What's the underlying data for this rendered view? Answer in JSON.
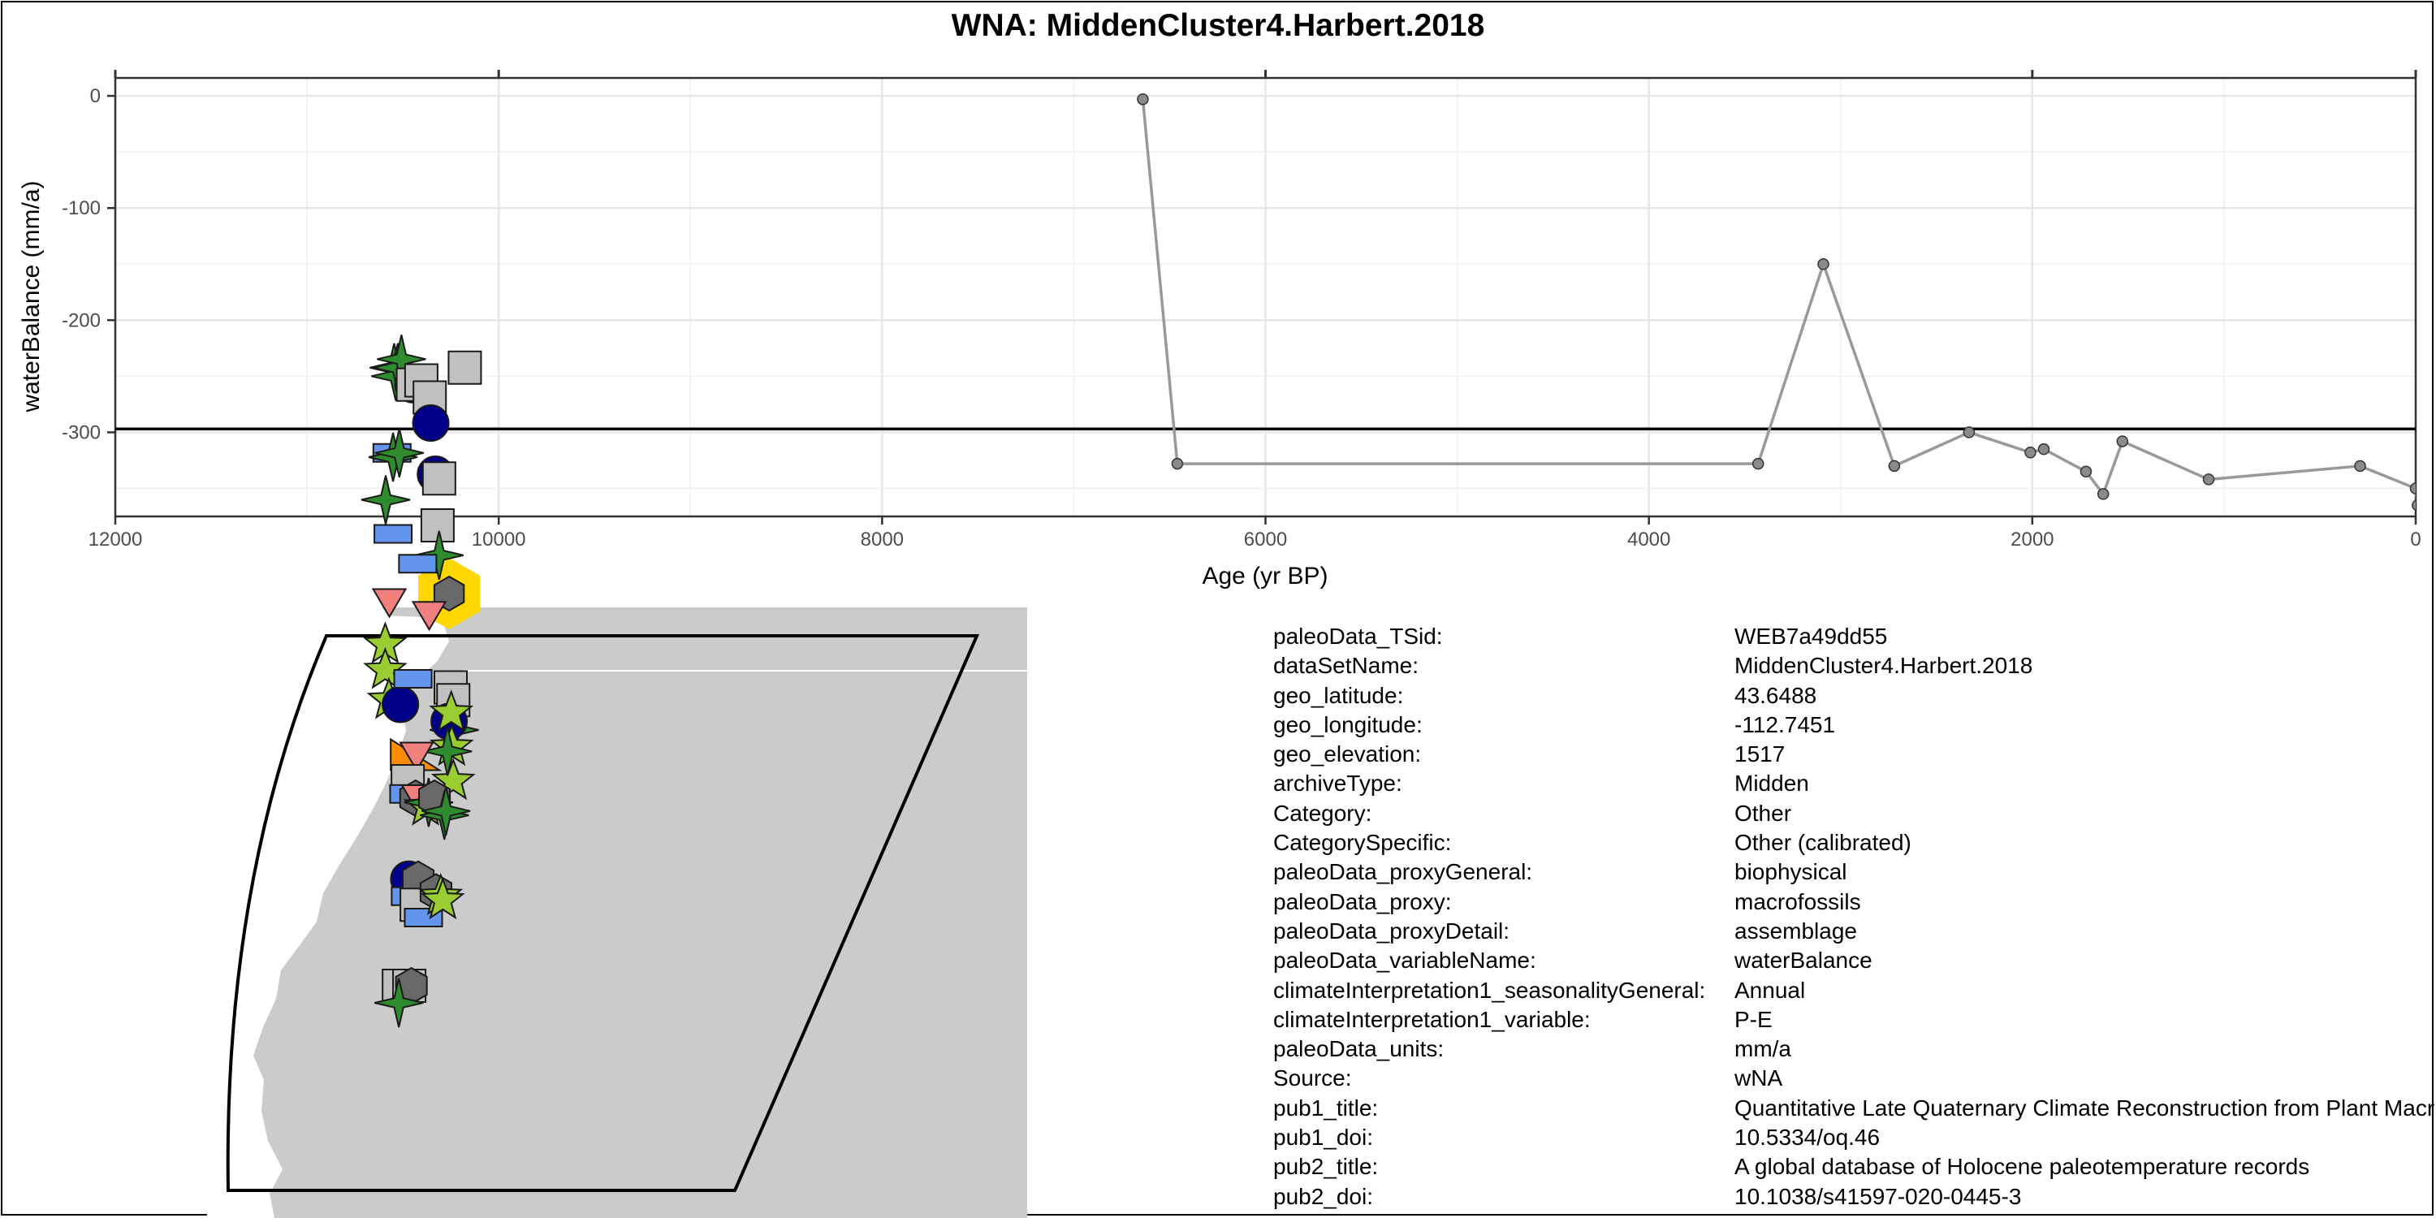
{
  "chart_data": {
    "type": "line",
    "title": "WNA: MiddenCluster4.Harbert.2018",
    "xlabel": "Age (yr BP)",
    "ylabel": "waterBalance (mm/a)",
    "x_reversed": true,
    "xlim": [
      12000,
      0
    ],
    "ylim": [
      -375,
      16
    ],
    "x_ticks": [
      12000,
      10000,
      8000,
      6000,
      4000,
      2000,
      0
    ],
    "y_ticks": [
      0,
      -100,
      -200,
      -300
    ],
    "reference_line": -297,
    "grid": true,
    "series": [
      {
        "x": [
          6640,
          6460,
          3430,
          3090,
          2720,
          2330,
          2010,
          1940,
          1720,
          1630,
          1530,
          1080,
          290,
          0,
          -10
        ],
        "y": [
          -3,
          -328,
          -328,
          -150,
          -330,
          -300,
          -318,
          -315,
          -335,
          -355,
          -308,
          -342,
          -330,
          -350,
          -365
        ]
      }
    ]
  },
  "metadata": [
    {
      "key": "paleoData_TSid:",
      "value": "WEB7a49dd55"
    },
    {
      "key": "dataSetName:",
      "value": "MiddenCluster4.Harbert.2018"
    },
    {
      "key": "geo_latitude:",
      "value": "43.6488"
    },
    {
      "key": "geo_longitude:",
      "value": "-112.7451"
    },
    {
      "key": "geo_elevation:",
      "value": "1517"
    },
    {
      "key": "archiveType:",
      "value": "Midden"
    },
    {
      "key": "Category:",
      "value": "Other"
    },
    {
      "key": "CategorySpecific:",
      "value": "Other (calibrated)"
    },
    {
      "key": "paleoData_proxyGeneral:",
      "value": "biophysical"
    },
    {
      "key": "paleoData_proxy:",
      "value": "macrofossils"
    },
    {
      "key": "paleoData_proxyDetail:",
      "value": "assemblage"
    },
    {
      "key": "paleoData_variableName:",
      "value": "waterBalance"
    },
    {
      "key": "climateInterpretation1_seasonalityGeneral:",
      "value": "Annual"
    },
    {
      "key": "climateInterpretation1_variable:",
      "value": "P-E"
    },
    {
      "key": "paleoData_units:",
      "value": "mm/a"
    },
    {
      "key": "Source:",
      "value": "wNA"
    },
    {
      "key": "pub1_title:",
      "value": "Quantitative Late Quaternary Climate Reconstruction from Plant Macrofossil Communities"
    },
    {
      "key": "pub1_doi:",
      "value": "10.5334/oq.46"
    },
    {
      "key": "pub2_title:",
      "value": "A global database of Holocene paleotemperature records"
    },
    {
      "key": "pub2_doi:",
      "value": "10.1038/s41597-020-0445-3"
    }
  ],
  "map": {
    "colors": {
      "land": "#cbcbcb",
      "ocean": "#ffffff",
      "dark_green": "#2e8b2e",
      "light_green": "#9acd32",
      "navy": "#00008b",
      "blue": "#6495ed",
      "grey": "#c0c0c0",
      "dark_grey": "#696969",
      "pink": "#f08080",
      "orange": "#ff8c00",
      "highlight": "#ffd700"
    },
    "markers": [
      {
        "shape": "star4",
        "color": "dark_green",
        "lon": -123.2,
        "lat": 48.9
      },
      {
        "shape": "star4",
        "color": "dark_green",
        "lon": -122.9,
        "lat": 48.7
      },
      {
        "shape": "star4",
        "color": "dark_green",
        "lon": -122.5,
        "lat": 48.9
      },
      {
        "shape": "star4",
        "color": "dark_green",
        "lon": -121.8,
        "lat": 49.1
      },
      {
        "shape": "circle",
        "color": "navy",
        "lon": -119.6,
        "lat": 48.5
      },
      {
        "shape": "square",
        "color": "grey",
        "lon": -119.6,
        "lat": 48.5
      },
      {
        "shape": "square",
        "color": "grey",
        "lon": -118.0,
        "lat": 48.6
      },
      {
        "shape": "square",
        "color": "grey",
        "lon": -116.4,
        "lat": 48.2
      },
      {
        "shape": "circle",
        "color": "navy",
        "lon": -116.2,
        "lat": 47.6
      },
      {
        "shape": "square",
        "color": "grey",
        "lon": -109.7,
        "lat": 48.9
      },
      {
        "shape": "rect",
        "color": "blue",
        "lon": -123.6,
        "lat": 46.9
      },
      {
        "shape": "star4",
        "color": "dark_green",
        "lon": -123.4,
        "lat": 46.8
      },
      {
        "shape": "star4",
        "color": "dark_green",
        "lon": -122.2,
        "lat": 46.9
      },
      {
        "shape": "circle",
        "color": "navy",
        "lon": -115.3,
        "lat": 46.4
      },
      {
        "shape": "square",
        "color": "grey",
        "lon": -114.6,
        "lat": 46.3
      },
      {
        "shape": "star4",
        "color": "dark_green",
        "lon": -124.8,
        "lat": 45.8
      },
      {
        "shape": "rect",
        "color": "blue",
        "lon": -123.4,
        "lat": 45.0
      },
      {
        "shape": "hexagon",
        "color": "dark_grey",
        "lon": -112.7,
        "lat": 43.6,
        "highlight": true
      },
      {
        "shape": "square",
        "color": "grey",
        "lon": -114.9,
        "lat": 45.2
      },
      {
        "shape": "star4",
        "color": "dark_green",
        "lon": -114.6,
        "lat": 44.5
      },
      {
        "shape": "rect",
        "color": "blue",
        "lon": -118.7,
        "lat": 44.3
      },
      {
        "shape": "triangle_down",
        "color": "pink",
        "lon": -124.1,
        "lat": 43.4
      },
      {
        "shape": "triangle_down",
        "color": "pink",
        "lon": -116.5,
        "lat": 43.1
      },
      {
        "shape": "star5",
        "color": "light_green",
        "lon": -124.9,
        "lat": 42.4
      },
      {
        "shape": "star5",
        "color": "light_green",
        "lon": -124.9,
        "lat": 41.8
      },
      {
        "shape": "star5",
        "color": "light_green",
        "lon": -124.2,
        "lat": 41.1
      },
      {
        "shape": "circle",
        "color": "navy",
        "lon": -122.0,
        "lat": 41.0
      },
      {
        "shape": "rect",
        "color": "blue",
        "lon": -119.6,
        "lat": 41.6
      },
      {
        "shape": "square",
        "color": "grey",
        "lon": -112.4,
        "lat": 41.4
      },
      {
        "shape": "square",
        "color": "grey",
        "lon": -111.9,
        "lat": 41.1
      },
      {
        "shape": "star4",
        "color": "dark_green",
        "lon": -111.7,
        "lat": 40.4
      },
      {
        "shape": "circle",
        "color": "navy",
        "lon": -112.7,
        "lat": 40.6
      },
      {
        "shape": "star5",
        "color": "light_green",
        "lon": -112.3,
        "lat": 40.8
      },
      {
        "shape": "star5",
        "color": "light_green",
        "lon": -112.2,
        "lat": 40.0
      },
      {
        "shape": "star5",
        "color": "light_green",
        "lon": -111.9,
        "lat": 39.2
      },
      {
        "shape": "star4",
        "color": "dark_green",
        "lon": -113.0,
        "lat": 39.9
      },
      {
        "shape": "triangle_ne",
        "color": "orange",
        "lon": -119.2,
        "lat": 39.8
      },
      {
        "shape": "triangle_down",
        "color": "pink",
        "lon": -118.9,
        "lat": 39.8
      },
      {
        "shape": "square",
        "color": "grey",
        "lon": -120.6,
        "lat": 39.2
      },
      {
        "shape": "rect",
        "color": "blue",
        "lon": -120.4,
        "lat": 38.9
      },
      {
        "shape": "hexagon",
        "color": "dark_grey",
        "lon": -119.1,
        "lat": 38.8
      },
      {
        "shape": "triangle_down",
        "color": "pink",
        "lon": -118.6,
        "lat": 38.8
      },
      {
        "shape": "star5",
        "color": "light_green",
        "lon": -117.2,
        "lat": 38.6
      },
      {
        "shape": "star4",
        "color": "dark_green",
        "lon": -116.6,
        "lat": 38.7
      },
      {
        "shape": "hexagon",
        "color": "dark_grey",
        "lon": -115.5,
        "lat": 38.8
      },
      {
        "shape": "star4",
        "color": "dark_green",
        "lon": -113.6,
        "lat": 38.4
      },
      {
        "shape": "star4",
        "color": "dark_green",
        "lon": -113.3,
        "lat": 38.5
      },
      {
        "shape": "circle",
        "color": "navy",
        "lon": -120.4,
        "lat": 36.9
      },
      {
        "shape": "rect",
        "color": "blue",
        "lon": -120.1,
        "lat": 36.5
      },
      {
        "shape": "hexagon",
        "color": "dark_grey",
        "lon": -118.6,
        "lat": 36.9
      },
      {
        "shape": "square",
        "color": "grey",
        "lon": -118.9,
        "lat": 36.3
      },
      {
        "shape": "rect",
        "color": "blue",
        "lon": -117.6,
        "lat": 36.0
      },
      {
        "shape": "hexagon",
        "color": "dark_grey",
        "lon": -115.2,
        "lat": 36.6
      },
      {
        "shape": "star5",
        "color": "light_green",
        "lon": -114.3,
        "lat": 36.5
      },
      {
        "shape": "star5",
        "color": "light_green",
        "lon": -113.9,
        "lat": 36.4
      },
      {
        "shape": "square",
        "color": "grey",
        "lon": -122.3,
        "lat": 34.4
      },
      {
        "shape": "square",
        "color": "grey",
        "lon": -120.3,
        "lat": 34.4
      },
      {
        "shape": "hexagon",
        "color": "dark_grey",
        "lon": -119.9,
        "lat": 34.4
      },
      {
        "shape": "star4",
        "color": "dark_green",
        "lon": -122.3,
        "lat": 34.0
      }
    ]
  }
}
